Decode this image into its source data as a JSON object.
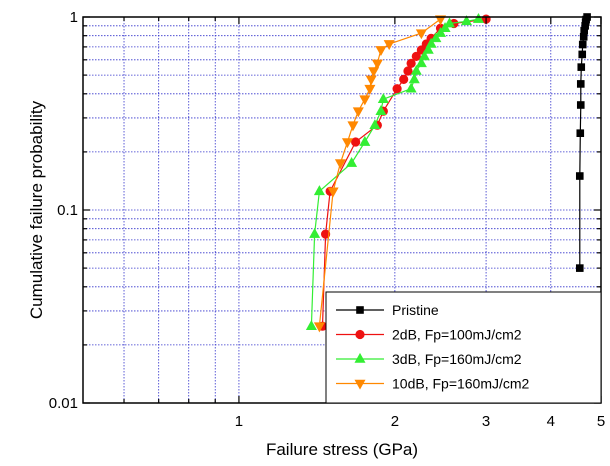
{
  "chart_data": {
    "type": "scatter",
    "xlabel": "Failure stress (GPa)",
    "ylabel": "Cumulative failure probability",
    "x_scale": "log",
    "y_scale": "log",
    "xlim": [
      0.5,
      5.0
    ],
    "ylim": [
      0.01,
      1.0
    ],
    "x_ticks": [
      {
        "value": 1,
        "label": "1"
      },
      {
        "value": 2,
        "label": "2"
      },
      {
        "value": 3,
        "label": "3"
      },
      {
        "value": 4,
        "label": "4"
      },
      {
        "value": 5,
        "label": "5"
      }
    ],
    "y_ticks": [
      {
        "value": 0.01,
        "label": "0.01"
      },
      {
        "value": 0.1,
        "label": "0.1"
      },
      {
        "value": 1,
        "label": "1"
      }
    ],
    "grid": true,
    "legend_position": "bottom-right",
    "colors": {
      "grid": "#3333cc",
      "axis": "#000000"
    },
    "series": [
      {
        "name": "Pristine",
        "color": "#000000",
        "marker": "square",
        "x": [
          4.55,
          4.55,
          4.56,
          4.57,
          4.57,
          4.58,
          4.6,
          4.61,
          4.63,
          4.64,
          4.66,
          4.67,
          4.68,
          4.7
        ],
        "y": [
          0.05,
          0.15,
          0.25,
          0.35,
          0.45,
          0.55,
          0.64,
          0.72,
          0.79,
          0.85,
          0.9,
          0.94,
          0.97,
          1.0
        ]
      },
      {
        "name": "2dB, Fp=100mJ/cm2",
        "color": "#ee1111",
        "marker": "circle",
        "x": [
          1.45,
          1.47,
          1.5,
          1.68,
          1.85,
          1.9,
          2.02,
          2.08,
          2.12,
          2.15,
          2.2,
          2.25,
          2.3,
          2.35,
          2.45,
          2.6,
          3.0
        ],
        "y": [
          0.025,
          0.075,
          0.125,
          0.225,
          0.275,
          0.325,
          0.425,
          0.475,
          0.525,
          0.575,
          0.625,
          0.675,
          0.725,
          0.775,
          0.875,
          0.925,
          0.975
        ]
      },
      {
        "name": "3dB, Fp=160mJ/cm2",
        "color": "#33ee33",
        "marker": "triangle-up",
        "x": [
          1.38,
          1.4,
          1.43,
          1.65,
          1.75,
          1.83,
          1.88,
          1.9,
          2.15,
          2.18,
          2.2,
          2.25,
          2.28,
          2.32,
          2.35,
          2.4,
          2.45,
          2.5,
          2.55,
          2.75,
          2.9
        ],
        "y": [
          0.025,
          0.075,
          0.125,
          0.175,
          0.225,
          0.275,
          0.325,
          0.375,
          0.425,
          0.475,
          0.525,
          0.575,
          0.625,
          0.675,
          0.725,
          0.775,
          0.825,
          0.875,
          0.925,
          0.95,
          0.975
        ]
      },
      {
        "name": "10dB, Fp=160mJ/cm2",
        "color": "#ff8800",
        "marker": "triangle-down",
        "x": [
          1.43,
          1.52,
          1.57,
          1.62,
          1.66,
          1.7,
          1.75,
          1.79,
          1.8,
          1.82,
          1.85,
          1.88,
          1.95,
          2.25,
          2.45
        ],
        "y": [
          0.025,
          0.125,
          0.175,
          0.225,
          0.275,
          0.325,
          0.375,
          0.425,
          0.475,
          0.525,
          0.575,
          0.675,
          0.725,
          0.825,
          0.975
        ]
      }
    ]
  }
}
